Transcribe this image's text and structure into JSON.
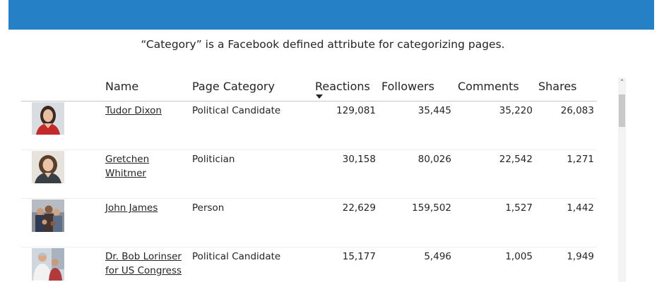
{
  "caption": "“Category” is a Facebook defined attribute for categorizing pages.",
  "colors": {
    "banner": "#2680c6",
    "text": "#252423",
    "divider": "#c8c8c8"
  },
  "table": {
    "headers": {
      "name": "Name",
      "category": "Page Category",
      "reactions": "Reactions",
      "followers": "Followers",
      "comments": "Comments",
      "shares": "Shares"
    },
    "sort_icon": "sort-descending-icon",
    "rows": [
      {
        "name": "Tudor Dixon",
        "category": "Political Candidate",
        "reactions": "129,081",
        "followers": "35,445",
        "comments": "35,220",
        "shares": "26,083"
      },
      {
        "name": "Gretchen Whitmer",
        "category": "Politician",
        "reactions": "30,158",
        "followers": "80,026",
        "comments": "22,542",
        "shares": "1,271"
      },
      {
        "name": "John James",
        "category": "Person",
        "reactions": "22,629",
        "followers": "159,502",
        "comments": "1,527",
        "shares": "1,442"
      },
      {
        "name": "Dr. Bob Lorinser for US Congress",
        "category": "Political Candidate",
        "reactions": "15,177",
        "followers": "5,496",
        "comments": "1,005",
        "shares": "1,949"
      }
    ]
  }
}
